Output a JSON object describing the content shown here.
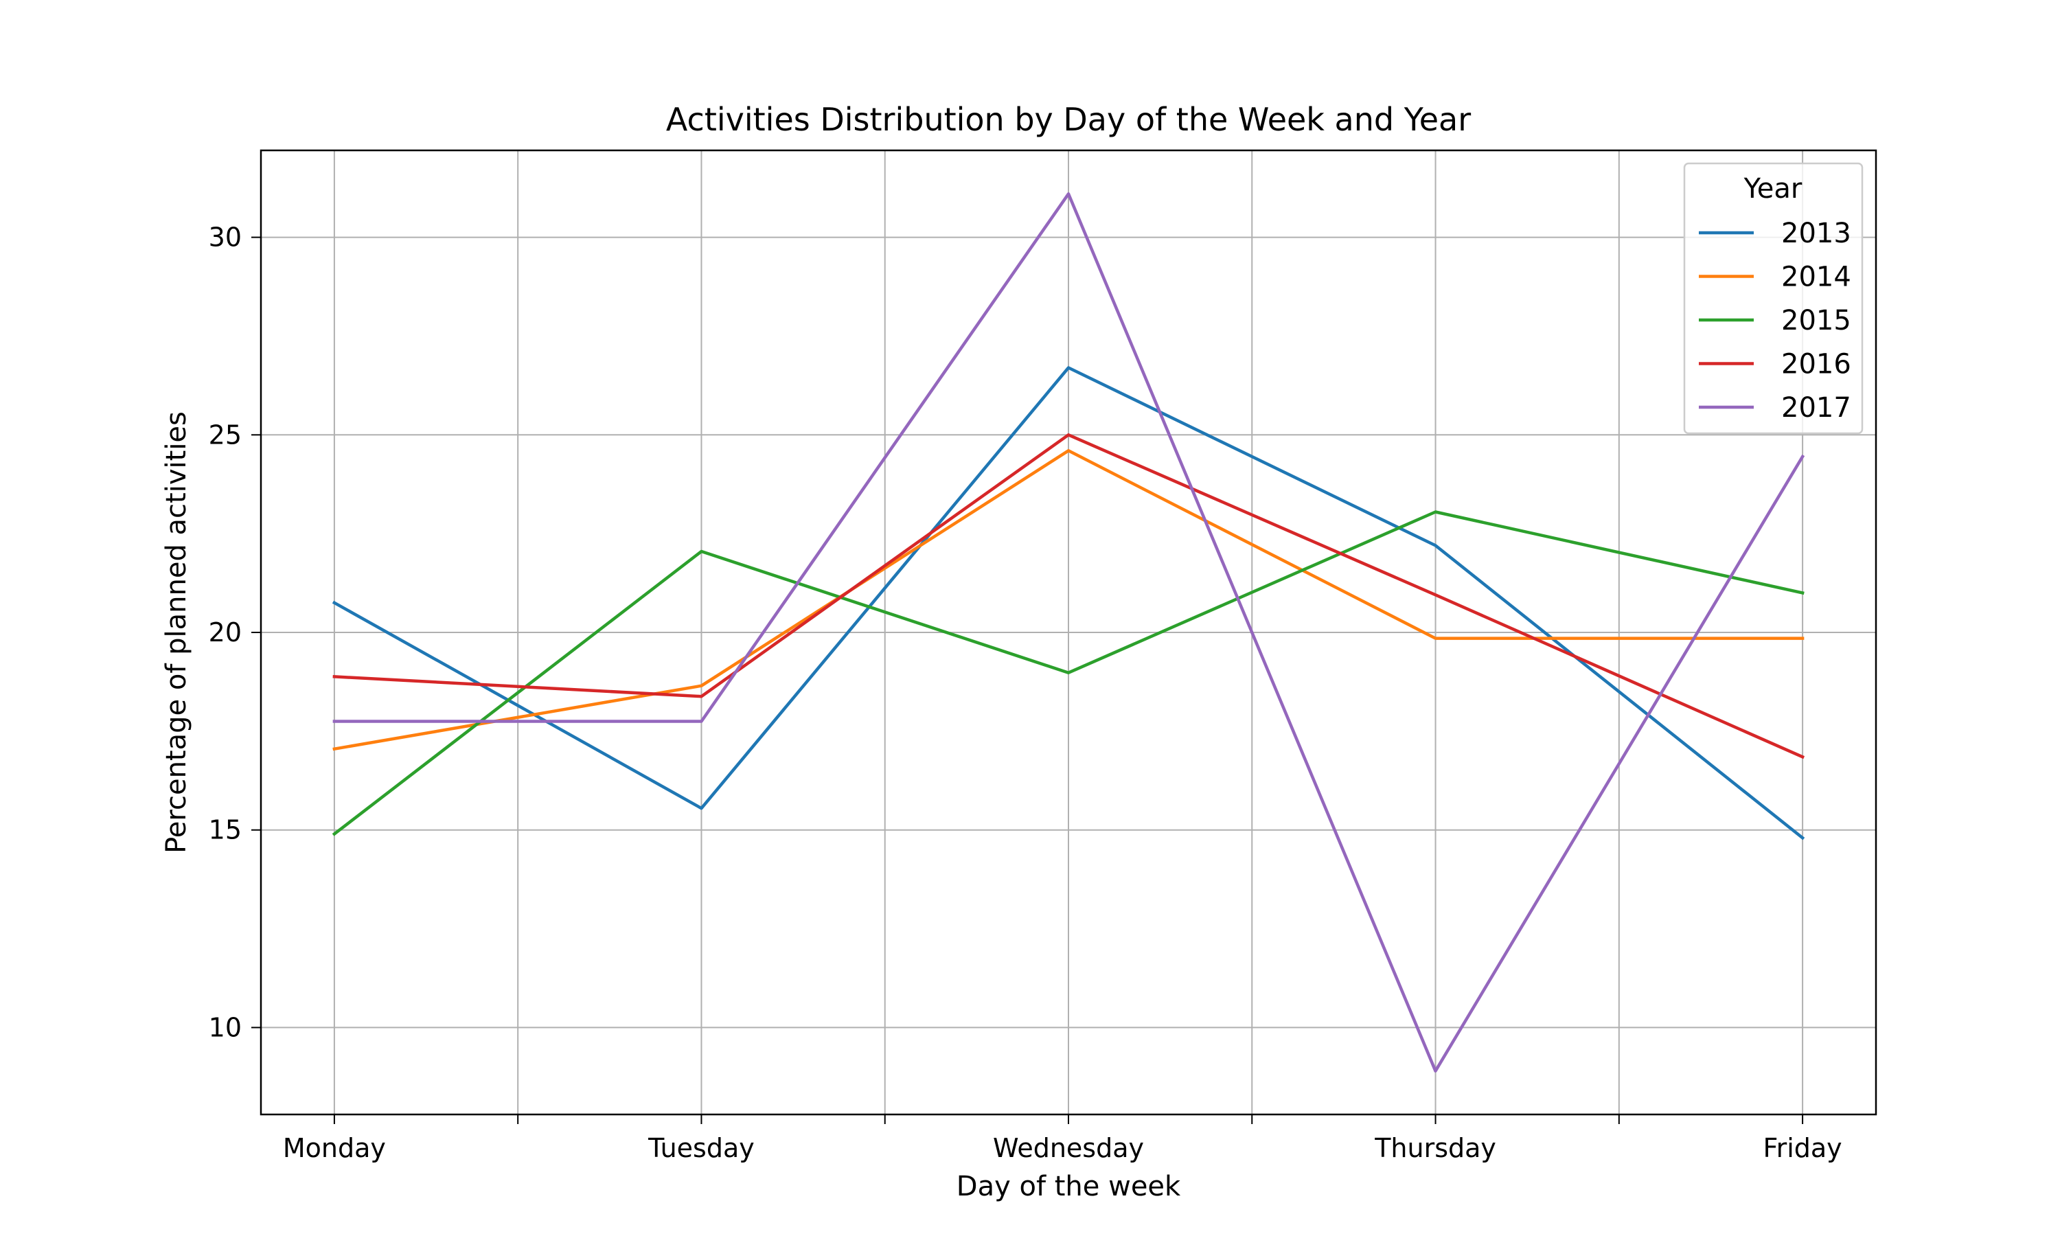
{
  "chart_data": {
    "type": "line",
    "title": "Activities Distribution by Day of the Week and Year",
    "xlabel": "Day of the week",
    "ylabel": "Percentage of planned activities",
    "categories": [
      "Monday",
      "Tuesday",
      "Wednesday",
      "Thursday",
      "Friday"
    ],
    "xlim": [
      -0.2,
      4.2
    ],
    "ylim": [
      7.8,
      32.2
    ],
    "yticks": [
      10,
      15,
      20,
      25,
      30
    ],
    "grid": true,
    "legend": {
      "title": "Year",
      "placement": "top-right"
    },
    "series": [
      {
        "name": "2013",
        "color": "#1f77b4",
        "values": [
          20.75,
          15.55,
          26.7,
          22.2,
          14.8
        ]
      },
      {
        "name": "2014",
        "color": "#ff7f0e",
        "values": [
          17.05,
          18.65,
          24.6,
          19.85,
          19.85
        ]
      },
      {
        "name": "2015",
        "color": "#2ca02c",
        "values": [
          14.9,
          22.05,
          18.98,
          23.05,
          21.0
        ]
      },
      {
        "name": "2016",
        "color": "#d62728",
        "values": [
          18.88,
          18.38,
          25.0,
          20.95,
          16.85
        ]
      },
      {
        "name": "2017",
        "color": "#9467bd",
        "values": [
          17.75,
          17.75,
          31.1,
          8.9,
          24.45
        ]
      }
    ]
  }
}
